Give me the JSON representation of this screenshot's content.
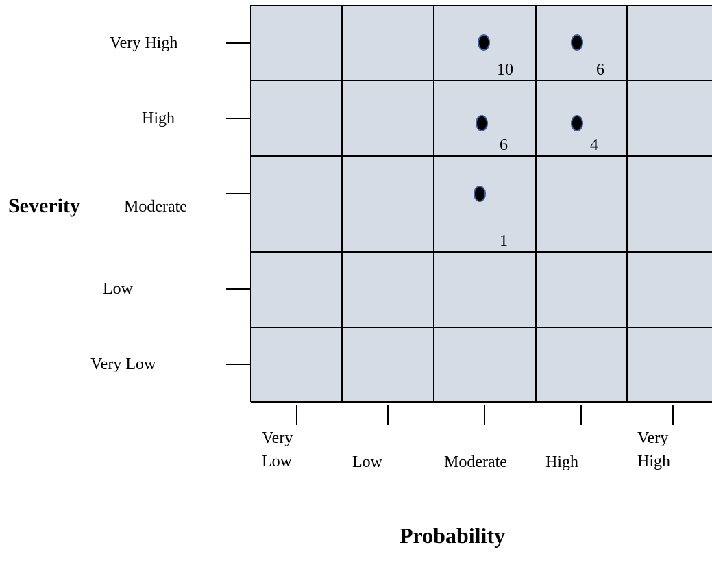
{
  "y_axis": {
    "title": "Severity",
    "labels": [
      "Very High",
      "High",
      "Moderate",
      "Low",
      "Very Low"
    ]
  },
  "x_axis": {
    "title": "Probability",
    "labels": [
      "Very Low",
      "Low",
      "Moderate",
      "High",
      "Very High"
    ]
  },
  "points": [
    "10",
    "6",
    "6",
    "4",
    "1"
  ]
}
